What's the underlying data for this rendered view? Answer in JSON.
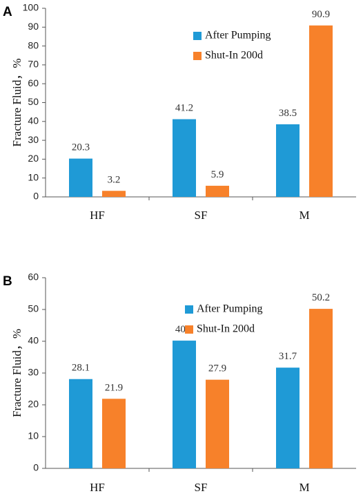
{
  "chart_data": [
    {
      "panel": "A",
      "type": "bar",
      "categories": [
        "HF",
        "SF",
        "M"
      ],
      "series": [
        {
          "name": "After Pumping",
          "values": [
            20.3,
            41.2,
            38.5
          ]
        },
        {
          "name": "Shut-In 200d",
          "values": [
            3.2,
            5.9,
            90.9
          ]
        }
      ],
      "data_labels": [
        [
          "20.3",
          "41.2",
          "38.5"
        ],
        [
          "3.2",
          "5.9",
          "90.9"
        ]
      ],
      "ylabel": "Fracture Fluid，%",
      "ylim": [
        0,
        100
      ],
      "yticks": [
        0,
        10,
        20,
        30,
        40,
        50,
        60,
        70,
        80,
        90,
        100
      ],
      "grid": false,
      "legend_position": "top-center"
    },
    {
      "panel": "B",
      "type": "bar",
      "categories": [
        "HF",
        "SF",
        "M"
      ],
      "series": [
        {
          "name": "After Pumping",
          "values": [
            28.1,
            40.2,
            31.7
          ]
        },
        {
          "name": "Shut-In 200d",
          "values": [
            21.9,
            27.9,
            50.2
          ]
        }
      ],
      "data_labels": [
        [
          "28.1",
          "40.2",
          "31.7"
        ],
        [
          "21.9",
          "27.9",
          "50.2"
        ]
      ],
      "ylabel": "Fracture Fluid，%",
      "ylim": [
        0,
        60
      ],
      "yticks": [
        0,
        10,
        20,
        30,
        40,
        50,
        60
      ],
      "grid": false,
      "legend_position": "top-center"
    }
  ],
  "colors": {
    "series": [
      "#1f9ad6",
      "#f7812a"
    ],
    "axis": "#555555"
  }
}
